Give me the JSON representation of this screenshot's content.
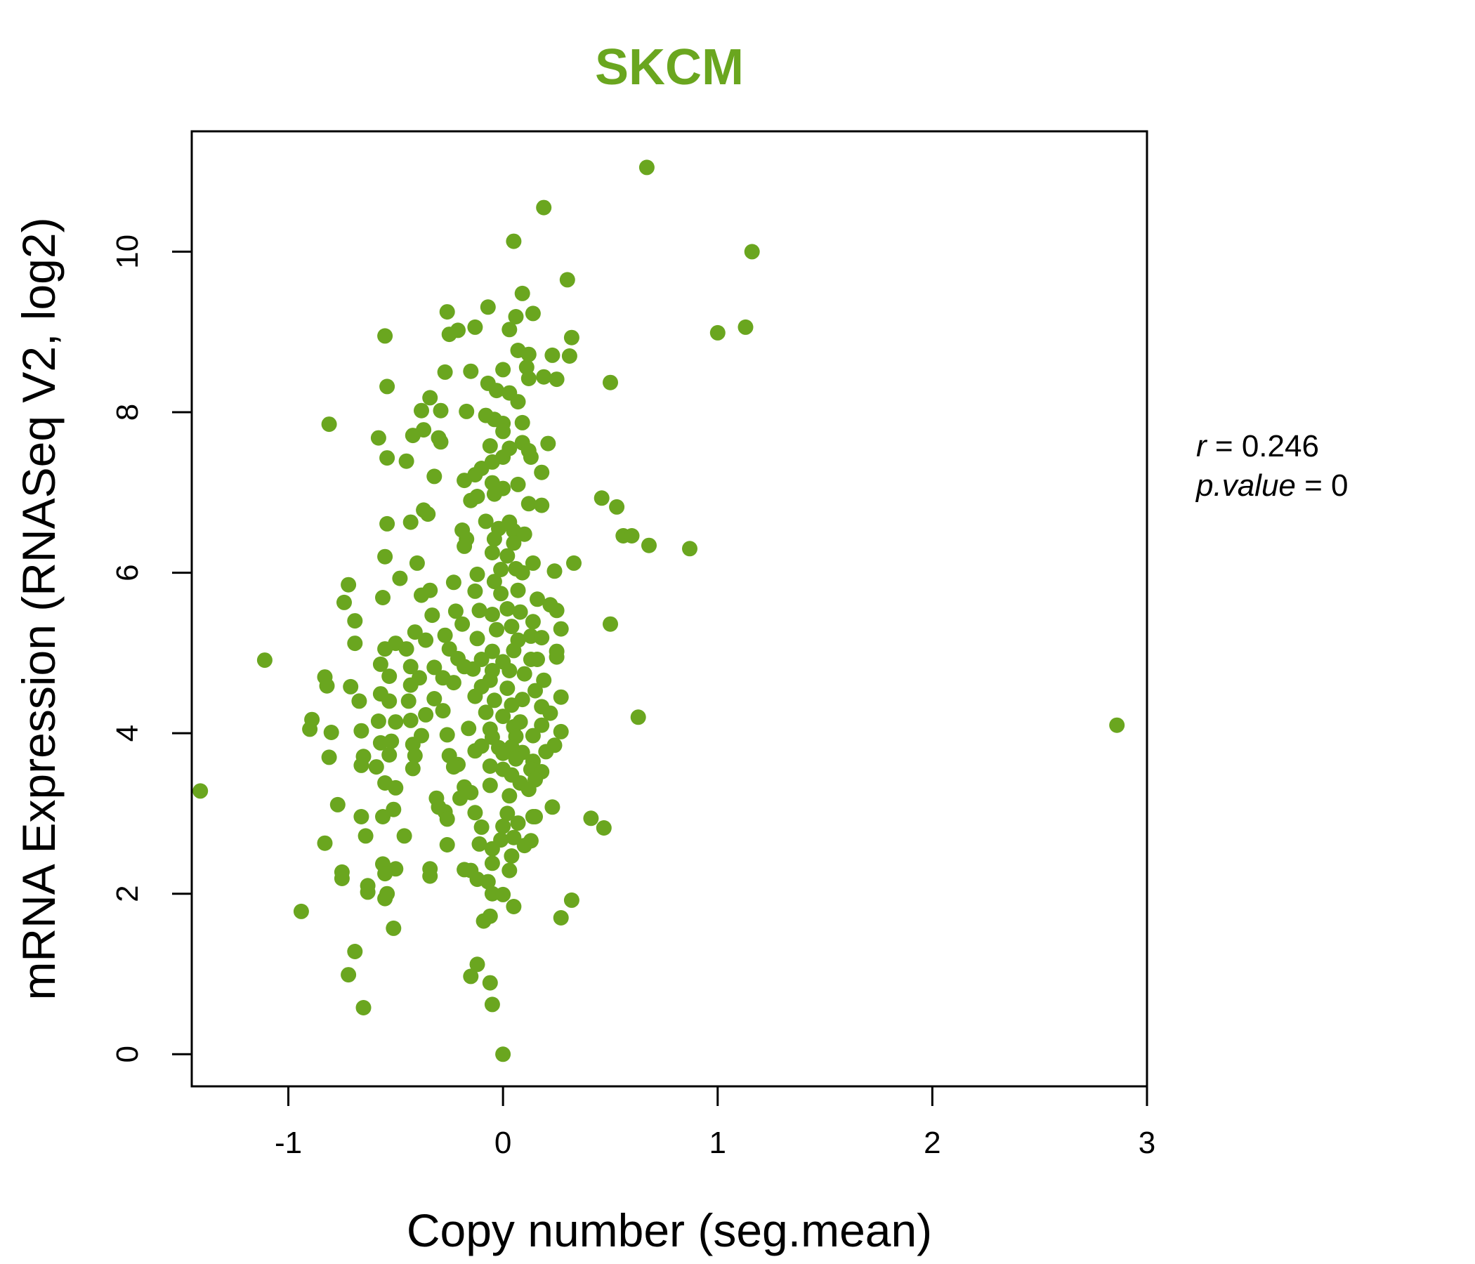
{
  "chart_data": {
    "type": "scatter",
    "title": "SKCM",
    "xlabel": "Copy number (seg.mean)",
    "ylabel": "mRNA Expression (RNASeq V2, log2)",
    "xlim": [
      -1.45,
      3.0
    ],
    "ylim": [
      -0.4,
      11.5
    ],
    "x_ticks": [
      "-1",
      "0",
      "1",
      "2",
      "3"
    ],
    "x_tick_values": [
      -1,
      0,
      1,
      2,
      3
    ],
    "y_ticks": [
      "0",
      "2",
      "4",
      "6",
      "8",
      "10"
    ],
    "y_tick_values": [
      0,
      2,
      4,
      6,
      8,
      10
    ],
    "point_color": "#6aa61f",
    "stats": {
      "r_label": "r",
      "r_value": "0.246",
      "p_label": "p.value",
      "p_value": "0"
    },
    "points": [
      [
        0.67,
        11.05
      ],
      [
        0.19,
        10.55
      ],
      [
        1.16,
        10.0
      ],
      [
        0.05,
        10.13
      ],
      [
        0.3,
        9.65
      ],
      [
        0.09,
        9.48
      ],
      [
        -0.26,
        9.25
      ],
      [
        -0.07,
        9.31
      ],
      [
        0.14,
        9.23
      ],
      [
        0.06,
        9.19
      ],
      [
        -0.13,
        9.06
      ],
      [
        0.03,
        9.03
      ],
      [
        -0.21,
        9.02
      ],
      [
        -0.25,
        8.97
      ],
      [
        -0.55,
        8.95
      ],
      [
        1.0,
        8.99
      ],
      [
        1.13,
        9.06
      ],
      [
        0.32,
        8.93
      ],
      [
        0.07,
        8.77
      ],
      [
        0.12,
        8.72
      ],
      [
        0.23,
        8.71
      ],
      [
        0.31,
        8.7
      ],
      [
        0.11,
        8.56
      ],
      [
        0.0,
        8.53
      ],
      [
        -0.15,
        8.51
      ],
      [
        -0.27,
        8.5
      ],
      [
        0.19,
        8.44
      ],
      [
        0.25,
        8.41
      ],
      [
        0.12,
        8.42
      ],
      [
        0.5,
        8.37
      ],
      [
        -0.54,
        8.32
      ],
      [
        -0.07,
        8.36
      ],
      [
        -0.03,
        8.27
      ],
      [
        0.03,
        8.24
      ],
      [
        0.07,
        8.13
      ],
      [
        -0.34,
        8.18
      ],
      [
        -0.38,
        8.02
      ],
      [
        -0.29,
        8.02
      ],
      [
        -0.17,
        8.01
      ],
      [
        -0.08,
        7.96
      ],
      [
        -0.04,
        7.91
      ],
      [
        0.0,
        7.86
      ],
      [
        0.09,
        7.87
      ],
      [
        -0.81,
        7.85
      ],
      [
        -0.37,
        7.78
      ],
      [
        -0.42,
        7.71
      ],
      [
        -0.3,
        7.68
      ],
      [
        -0.58,
        7.68
      ],
      [
        0.0,
        7.76
      ],
      [
        0.09,
        7.62
      ],
      [
        0.21,
        7.61
      ],
      [
        -0.06,
        7.58
      ],
      [
        0.03,
        7.55
      ],
      [
        0.12,
        7.52
      ],
      [
        -0.29,
        7.63
      ],
      [
        -0.54,
        7.43
      ],
      [
        -0.45,
        7.39
      ],
      [
        0.0,
        7.44
      ],
      [
        0.13,
        7.44
      ],
      [
        -0.05,
        7.38
      ],
      [
        -0.1,
        7.3
      ],
      [
        -0.13,
        7.22
      ],
      [
        0.18,
        7.25
      ],
      [
        -0.32,
        7.2
      ],
      [
        -0.18,
        7.15
      ],
      [
        -0.05,
        7.12
      ],
      [
        0.07,
        7.1
      ],
      [
        0.0,
        7.05
      ],
      [
        -0.04,
        6.98
      ],
      [
        0.12,
        6.86
      ],
      [
        0.18,
        6.84
      ],
      [
        -0.15,
        6.9
      ],
      [
        -0.12,
        6.95
      ],
      [
        0.46,
        6.93
      ],
      [
        0.53,
        6.82
      ],
      [
        -0.37,
        6.78
      ],
      [
        -0.35,
        6.73
      ],
      [
        -0.43,
        6.63
      ],
      [
        -0.54,
        6.61
      ],
      [
        -0.08,
        6.64
      ],
      [
        0.03,
        6.63
      ],
      [
        -0.02,
        6.55
      ],
      [
        0.05,
        6.52
      ],
      [
        0.1,
        6.48
      ],
      [
        -0.19,
        6.53
      ],
      [
        -0.17,
        6.42
      ],
      [
        0.56,
        6.46
      ],
      [
        0.6,
        6.46
      ],
      [
        0.68,
        6.34
      ],
      [
        0.87,
        6.3
      ],
      [
        -0.04,
        6.42
      ],
      [
        0.05,
        6.37
      ],
      [
        -0.18,
        6.33
      ],
      [
        -0.05,
        6.25
      ],
      [
        0.02,
        6.21
      ],
      [
        -0.55,
        6.2
      ],
      [
        -0.4,
        6.12
      ],
      [
        0.14,
        6.12
      ],
      [
        0.33,
        6.12
      ],
      [
        0.06,
        6.05
      ],
      [
        0.24,
        6.02
      ],
      [
        0.09,
        6.0
      ],
      [
        -0.01,
        6.04
      ],
      [
        -0.12,
        5.98
      ],
      [
        -0.48,
        5.93
      ],
      [
        -0.23,
        5.88
      ],
      [
        -0.04,
        5.89
      ],
      [
        -0.72,
        5.85
      ],
      [
        -0.34,
        5.78
      ],
      [
        -0.38,
        5.72
      ],
      [
        -0.56,
        5.69
      ],
      [
        -0.13,
        5.77
      ],
      [
        -0.01,
        5.74
      ],
      [
        0.07,
        5.78
      ],
      [
        0.16,
        5.67
      ],
      [
        0.22,
        5.6
      ],
      [
        0.25,
        5.53
      ],
      [
        0.02,
        5.55
      ],
      [
        -0.74,
        5.63
      ],
      [
        -0.22,
        5.52
      ],
      [
        -0.11,
        5.53
      ],
      [
        -0.05,
        5.48
      ],
      [
        0.08,
        5.51
      ],
      [
        -0.33,
        5.47
      ],
      [
        -0.69,
        5.4
      ],
      [
        0.14,
        5.39
      ],
      [
        0.27,
        5.3
      ],
      [
        0.5,
        5.36
      ],
      [
        -0.19,
        5.36
      ],
      [
        -0.03,
        5.29
      ],
      [
        0.04,
        5.33
      ],
      [
        0.13,
        5.21
      ],
      [
        0.18,
        5.19
      ],
      [
        -0.41,
        5.26
      ],
      [
        -0.27,
        5.22
      ],
      [
        -0.36,
        5.16
      ],
      [
        -0.5,
        5.12
      ],
      [
        -0.12,
        5.18
      ],
      [
        0.07,
        5.16
      ],
      [
        -0.55,
        5.05
      ],
      [
        -0.45,
        5.05
      ],
      [
        -0.25,
        5.05
      ],
      [
        -0.05,
        5.02
      ],
      [
        0.05,
        5.03
      ],
      [
        0.25,
        5.02
      ],
      [
        -0.69,
        5.12
      ],
      [
        -1.11,
        4.91
      ],
      [
        -0.21,
        4.93
      ],
      [
        -0.1,
        4.92
      ],
      [
        0.0,
        4.89
      ],
      [
        0.13,
        4.92
      ],
      [
        0.16,
        4.92
      ],
      [
        0.25,
        4.95
      ],
      [
        -0.57,
        4.86
      ],
      [
        -0.43,
        4.83
      ],
      [
        -0.32,
        4.82
      ],
      [
        -0.18,
        4.83
      ],
      [
        -0.14,
        4.8
      ],
      [
        -0.05,
        4.78
      ],
      [
        0.03,
        4.78
      ],
      [
        0.1,
        4.74
      ],
      [
        -0.83,
        4.7
      ],
      [
        -0.53,
        4.71
      ],
      [
        -0.39,
        4.69
      ],
      [
        -0.28,
        4.69
      ],
      [
        -0.06,
        4.66
      ],
      [
        0.19,
        4.66
      ],
      [
        -0.82,
        4.59
      ],
      [
        -0.71,
        4.58
      ],
      [
        -0.43,
        4.6
      ],
      [
        -0.23,
        4.63
      ],
      [
        -0.1,
        4.58
      ],
      [
        0.02,
        4.56
      ],
      [
        0.15,
        4.53
      ],
      [
        -0.57,
        4.49
      ],
      [
        -0.32,
        4.43
      ],
      [
        -0.44,
        4.4
      ],
      [
        -0.13,
        4.46
      ],
      [
        -0.04,
        4.41
      ],
      [
        0.09,
        4.42
      ],
      [
        0.27,
        4.45
      ],
      [
        -0.53,
        4.4
      ],
      [
        -0.67,
        4.4
      ],
      [
        0.04,
        4.35
      ],
      [
        0.18,
        4.33
      ],
      [
        -0.28,
        4.28
      ],
      [
        -0.08,
        4.26
      ],
      [
        0.22,
        4.25
      ],
      [
        -0.36,
        4.23
      ],
      [
        0.0,
        4.21
      ],
      [
        0.63,
        4.2
      ],
      [
        -0.89,
        4.17
      ],
      [
        -0.58,
        4.15
      ],
      [
        -0.43,
        4.16
      ],
      [
        -0.5,
        4.14
      ],
      [
        0.08,
        4.14
      ],
      [
        0.18,
        4.1
      ],
      [
        2.86,
        4.1
      ],
      [
        -0.9,
        4.05
      ],
      [
        -0.8,
        4.01
      ],
      [
        -0.66,
        4.03
      ],
      [
        -0.16,
        4.06
      ],
      [
        -0.06,
        4.05
      ],
      [
        0.05,
        4.08
      ],
      [
        -0.26,
        3.98
      ],
      [
        -0.38,
        3.97
      ],
      [
        -0.05,
        3.95
      ],
      [
        0.06,
        3.96
      ],
      [
        0.14,
        3.97
      ],
      [
        0.27,
        4.02
      ],
      [
        -0.52,
        3.9
      ],
      [
        -0.57,
        3.88
      ],
      [
        -0.42,
        3.86
      ],
      [
        -0.1,
        3.84
      ],
      [
        -0.02,
        3.82
      ],
      [
        0.04,
        3.83
      ],
      [
        0.24,
        3.85
      ],
      [
        -0.13,
        3.78
      ],
      [
        0.0,
        3.75
      ],
      [
        0.09,
        3.76
      ],
      [
        0.2,
        3.77
      ],
      [
        -0.53,
        3.73
      ],
      [
        -0.65,
        3.71
      ],
      [
        -0.81,
        3.7
      ],
      [
        -0.41,
        3.72
      ],
      [
        -0.25,
        3.72
      ],
      [
        0.06,
        3.68
      ],
      [
        0.14,
        3.65
      ],
      [
        -0.21,
        3.61
      ],
      [
        -0.06,
        3.59
      ],
      [
        -0.59,
        3.58
      ],
      [
        -0.66,
        3.6
      ],
      [
        -0.42,
        3.56
      ],
      [
        0.0,
        3.55
      ],
      [
        0.13,
        3.55
      ],
      [
        0.18,
        3.52
      ],
      [
        -0.23,
        3.58
      ],
      [
        0.04,
        3.48
      ],
      [
        0.15,
        3.42
      ],
      [
        -0.55,
        3.38
      ],
      [
        -0.5,
        3.32
      ],
      [
        0.08,
        3.38
      ],
      [
        -0.18,
        3.33
      ],
      [
        -0.06,
        3.35
      ],
      [
        0.12,
        3.3
      ],
      [
        -1.41,
        3.28
      ],
      [
        -0.15,
        3.26
      ],
      [
        0.03,
        3.22
      ],
      [
        -0.31,
        3.19
      ],
      [
        -0.2,
        3.19
      ],
      [
        -0.77,
        3.11
      ],
      [
        -0.3,
        3.08
      ],
      [
        0.23,
        3.08
      ],
      [
        -0.51,
        3.05
      ],
      [
        -0.27,
        3.02
      ],
      [
        -0.13,
        3.01
      ],
      [
        0.02,
        3.0
      ],
      [
        -0.56,
        2.96
      ],
      [
        -0.66,
        2.96
      ],
      [
        -0.26,
        2.93
      ],
      [
        0.14,
        2.96
      ],
      [
        0.15,
        2.96
      ],
      [
        0.41,
        2.94
      ],
      [
        -0.1,
        2.83
      ],
      [
        0.0,
        2.84
      ],
      [
        0.07,
        2.88
      ],
      [
        0.47,
        2.82
      ],
      [
        -0.64,
        2.72
      ],
      [
        -0.46,
        2.72
      ],
      [
        0.05,
        2.7
      ],
      [
        -0.01,
        2.67
      ],
      [
        0.13,
        2.66
      ],
      [
        -0.83,
        2.63
      ],
      [
        -0.26,
        2.61
      ],
      [
        -0.11,
        2.62
      ],
      [
        0.1,
        2.6
      ],
      [
        -0.05,
        2.56
      ],
      [
        0.04,
        2.47
      ],
      [
        -0.05,
        2.38
      ],
      [
        -0.56,
        2.37
      ],
      [
        -0.5,
        2.31
      ],
      [
        -0.34,
        2.31
      ],
      [
        -0.18,
        2.3
      ],
      [
        -0.15,
        2.29
      ],
      [
        0.03,
        2.29
      ],
      [
        -0.75,
        2.27
      ],
      [
        -0.55,
        2.25
      ],
      [
        -0.75,
        2.19
      ],
      [
        -0.34,
        2.22
      ],
      [
        -0.12,
        2.18
      ],
      [
        -0.07,
        2.15
      ],
      [
        -0.63,
        2.1
      ],
      [
        -0.63,
        2.02
      ],
      [
        -0.54,
        2.0
      ],
      [
        -0.05,
        2.0
      ],
      [
        0.0,
        1.99
      ],
      [
        -0.55,
        1.94
      ],
      [
        0.32,
        1.92
      ],
      [
        0.05,
        1.84
      ],
      [
        -0.94,
        1.78
      ],
      [
        -0.06,
        1.72
      ],
      [
        -0.09,
        1.66
      ],
      [
        0.27,
        1.7
      ],
      [
        -0.51,
        1.57
      ],
      [
        -0.69,
        1.28
      ],
      [
        -0.12,
        1.12
      ],
      [
        -0.72,
        0.99
      ],
      [
        -0.15,
        0.97
      ],
      [
        -0.06,
        0.89
      ],
      [
        -0.65,
        0.58
      ],
      [
        -0.05,
        0.62
      ],
      [
        0.0,
        0.0
      ]
    ]
  }
}
